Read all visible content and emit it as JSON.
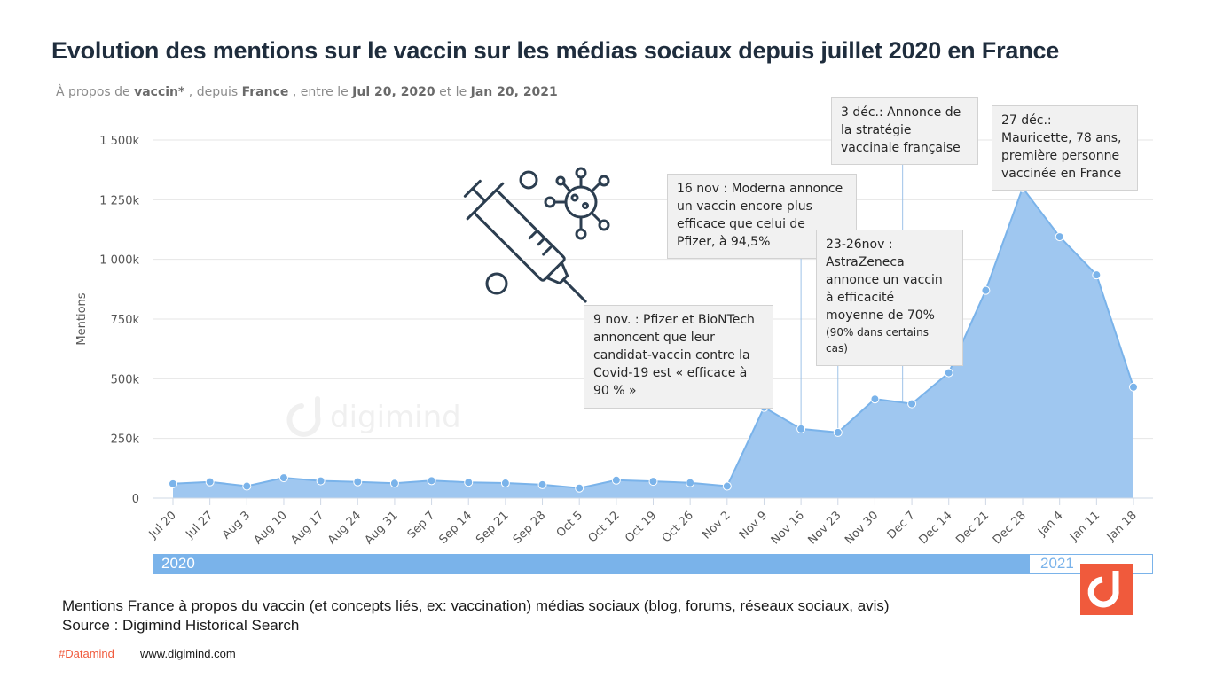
{
  "title": "Evolution des mentions sur le vaccin sur les médias sociaux depuis juillet 2020 en France",
  "subtitle": {
    "p1": "À propos de ",
    "keyword": "vaccin*",
    "p2": " , depuis ",
    "country": "France",
    "p3": " , entre le ",
    "start": "Jul 20, 2020",
    "p4": " et le ",
    "end": "Jan 20, 2021"
  },
  "chart_data": {
    "type": "area",
    "ylabel": "Mentions",
    "ylim": [
      0,
      1500000
    ],
    "yticks": [
      {
        "value": 0,
        "label": "0"
      },
      {
        "value": 250000,
        "label": "250k"
      },
      {
        "value": 500000,
        "label": "500k"
      },
      {
        "value": 750000,
        "label": "750k"
      },
      {
        "value": 1000000,
        "label": "1 000k"
      },
      {
        "value": 1250000,
        "label": "1 250k"
      },
      {
        "value": 1500000,
        "label": "1 500k"
      }
    ],
    "categories": [
      "Jul 20",
      "Jul 27",
      "Aug 3",
      "Aug 10",
      "Aug 17",
      "Aug 24",
      "Aug 31",
      "Sep 7",
      "Sep 14",
      "Sep 21",
      "Sep 28",
      "Oct 5",
      "Oct 12",
      "Oct 19",
      "Oct 26",
      "Nov 2",
      "Nov 9",
      "Nov 16",
      "Nov 23",
      "Nov 30",
      "Dec 7",
      "Dec 14",
      "Dec 21",
      "Dec 28",
      "Jan 4",
      "Jan 11",
      "Jan 18"
    ],
    "values": [
      60000,
      68000,
      50000,
      85000,
      72000,
      68000,
      62000,
      73000,
      66000,
      63000,
      56000,
      42000,
      75000,
      70000,
      64000,
      50000,
      380000,
      290000,
      275000,
      415000,
      395000,
      525000,
      870000,
      1300000,
      1095000,
      935000,
      465000
    ],
    "grid": true,
    "color": "#7ab3ea",
    "fill": "#9fc7f0",
    "year_bands": [
      {
        "label": "2020",
        "from": "Jul 20",
        "to": "Dec 28"
      },
      {
        "label": "2021",
        "from": "Jan 4",
        "to": "Jan 18"
      }
    ]
  },
  "annotations": [
    {
      "id": "nov9",
      "lines": [
        "9 nov. : Pfizer et BioNTech",
        "annoncent que leur",
        "candidat-vaccin contre la",
        "Covid-19 est « efficace à",
        "90 % »"
      ]
    },
    {
      "id": "nov16",
      "lines": [
        "16 nov : Moderna annonce",
        "un vaccin encore plus",
        "efficace que celui de",
        "Pfizer, à 94,5%"
      ]
    },
    {
      "id": "nov23",
      "lines": [
        "23-26nov :",
        "AstraZeneca",
        "annonce un vaccin",
        "à efficacité",
        "moyenne de 70%"
      ],
      "small": [
        "(90% dans certains",
        "cas)"
      ]
    },
    {
      "id": "dec3",
      "lines": [
        "3 déc.: Annonce de",
        "la stratégie",
        "vaccinale française"
      ]
    },
    {
      "id": "dec27",
      "lines": [
        "27 déc.:",
        "Mauricette, 78 ans,",
        "première personne",
        "vaccinée en France"
      ]
    }
  ],
  "caption": {
    "line1": "Mentions  France à propos du vaccin (et concepts liés, ex: vaccination) médias sociaux (blog, forums, réseaux sociaux, avis)",
    "line2": "Source : Digimind Historical Search"
  },
  "footer": {
    "hashtag": "#Datamind",
    "url": "www.digimind.com"
  },
  "watermark": "digimind",
  "colors": {
    "accent": "#7ab3ea",
    "brand": "#f05a3c",
    "title": "#1f2d3d"
  }
}
